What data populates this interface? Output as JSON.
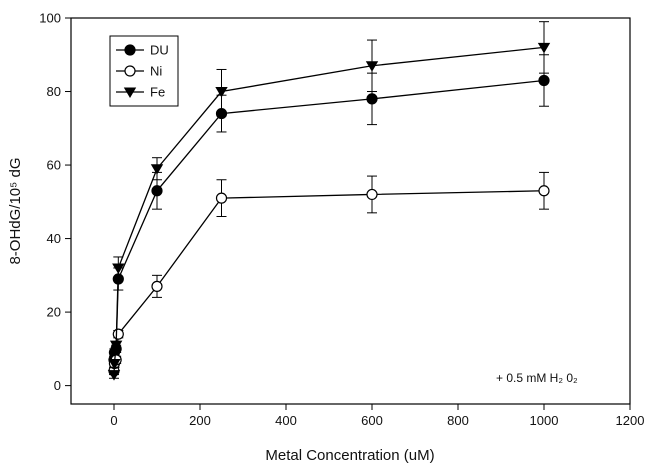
{
  "chart_data": {
    "type": "line",
    "xlabel": "Metal Concentration (uM)",
    "ylabel": "8-OHdG/10⁵ dG",
    "xlim": [
      -100,
      1200
    ],
    "ylim": [
      -5,
      100
    ],
    "x_ticks": [
      0,
      200,
      400,
      600,
      800,
      1000,
      1200
    ],
    "y_ticks": [
      0,
      20,
      40,
      60,
      80,
      100
    ],
    "legend_placement": "top-left",
    "annotation": "+ 0.5 mM H₂ 0₂",
    "series": [
      {
        "name": "DU",
        "marker": "filled-circle",
        "x": [
          0,
          1,
          5,
          10,
          100,
          250,
          600,
          1000
        ],
        "y": [
          7,
          9,
          10,
          29,
          53,
          74,
          78,
          83
        ],
        "err": [
          1,
          1,
          1,
          3,
          5,
          5,
          7,
          7
        ]
      },
      {
        "name": "Ni",
        "marker": "open-circle",
        "x": [
          0,
          1,
          5,
          10,
          100,
          250,
          600,
          1000
        ],
        "y": [
          4,
          6,
          7,
          14,
          27,
          51,
          52,
          53
        ],
        "err": [
          1,
          1,
          1,
          1,
          3,
          5,
          5,
          5
        ]
      },
      {
        "name": "Fe",
        "marker": "filled-triangle-down",
        "x": [
          0,
          1,
          5,
          10,
          100,
          250,
          600,
          1000
        ],
        "y": [
          3,
          6,
          11,
          32,
          59,
          80,
          87,
          92
        ],
        "err": [
          1,
          1,
          1,
          3,
          3,
          6,
          7,
          7
        ]
      }
    ]
  }
}
